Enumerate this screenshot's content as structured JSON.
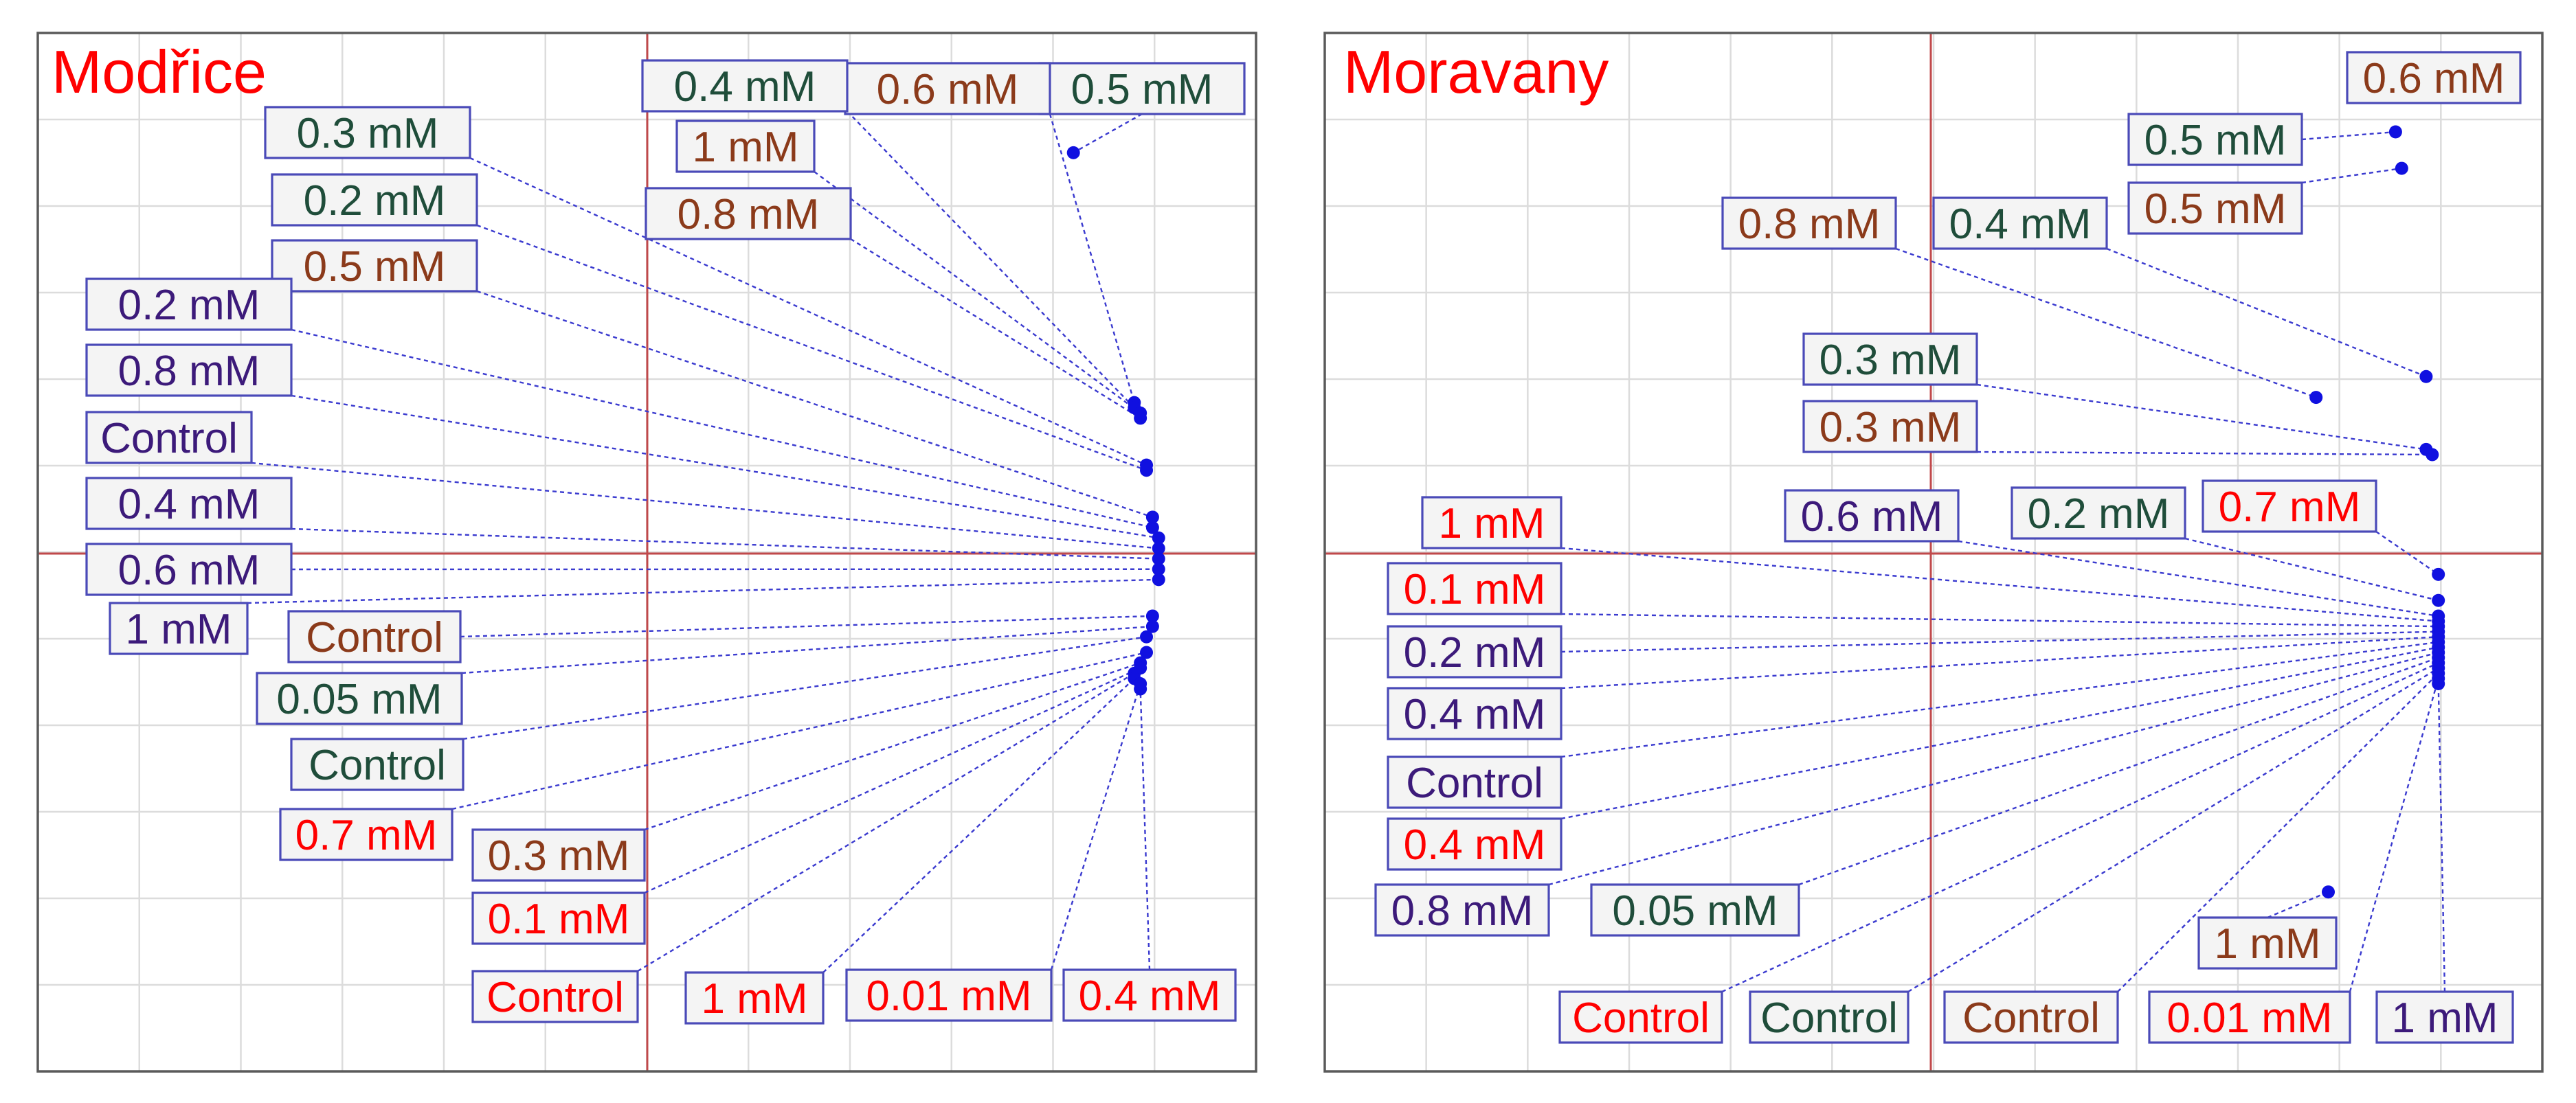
{
  "colors": {
    "red": "#ff0000",
    "brown": "#8b3a1a",
    "green": "#1f4d3a",
    "purple": "#3c1a7a",
    "point": "#1010e0"
  },
  "chart_data": [
    {
      "type": "scatter",
      "title": "Modřice",
      "xlim": [
        -1,
        1
      ],
      "ylim": [
        -1,
        1
      ],
      "gridlines": true,
      "points": [
        {
          "label": "0.5 mM",
          "color": "green",
          "x": 0.7,
          "y": 0.77
        },
        {
          "label": "0.6 mM",
          "color": "brown",
          "x": 0.8,
          "y": 0.29
        },
        {
          "label": "0.4 mM",
          "color": "green",
          "x": 0.8,
          "y": 0.28
        },
        {
          "label": "1 mM",
          "color": "brown",
          "x": 0.81,
          "y": 0.27
        },
        {
          "label": "0.8 mM",
          "color": "brown",
          "x": 0.81,
          "y": 0.26
        },
        {
          "label": "0.3 mM",
          "color": "green",
          "x": 0.82,
          "y": 0.17
        },
        {
          "label": "0.2 mM",
          "color": "green",
          "x": 0.82,
          "y": 0.16
        },
        {
          "label": "0.5 mM",
          "color": "brown",
          "x": 0.83,
          "y": 0.07
        },
        {
          "label": "0.2 mM",
          "color": "purple",
          "x": 0.83,
          "y": 0.05
        },
        {
          "label": "0.8 mM",
          "color": "purple",
          "x": 0.84,
          "y": 0.03
        },
        {
          "label": "Control",
          "color": "purple",
          "x": 0.84,
          "y": 0.01
        },
        {
          "label": "0.4 mM",
          "color": "purple",
          "x": 0.84,
          "y": -0.01
        },
        {
          "label": "0.6 mM",
          "color": "purple",
          "x": 0.84,
          "y": -0.03
        },
        {
          "label": "1 mM",
          "color": "purple",
          "x": 0.84,
          "y": -0.05
        },
        {
          "label": "Control",
          "color": "brown",
          "x": 0.83,
          "y": -0.12
        },
        {
          "label": "0.05 mM",
          "color": "green",
          "x": 0.83,
          "y": -0.14
        },
        {
          "label": "Control",
          "color": "green",
          "x": 0.82,
          "y": -0.16
        },
        {
          "label": "0.7 mM",
          "color": "red",
          "x": 0.82,
          "y": -0.19
        },
        {
          "label": "0.3 mM",
          "color": "brown",
          "x": 0.81,
          "y": -0.21
        },
        {
          "label": "0.1 mM",
          "color": "red",
          "x": 0.81,
          "y": -0.22
        },
        {
          "label": "Control",
          "color": "red",
          "x": 0.8,
          "y": -0.23
        },
        {
          "label": "1 mM",
          "color": "red",
          "x": 0.8,
          "y": -0.24
        },
        {
          "label": "0.01 mM",
          "color": "red",
          "x": 0.81,
          "y": -0.25
        },
        {
          "label": "0.4 mM",
          "color": "red",
          "x": 0.81,
          "y": -0.26
        }
      ]
    },
    {
      "type": "scatter",
      "title": "Moravany",
      "xlim": [
        -1,
        1
      ],
      "ylim": [
        -1,
        1
      ],
      "gridlines": true,
      "points": [
        {
          "label": "0.6 mM",
          "color": "brown",
          "x": 0.72,
          "y": 0.88
        },
        {
          "label": "0.5 mM",
          "color": "green",
          "x": 0.76,
          "y": 0.81
        },
        {
          "label": "0.5 mM",
          "color": "brown",
          "x": 0.77,
          "y": 0.74
        },
        {
          "label": "0.8 mM",
          "color": "brown",
          "x": 0.63,
          "y": 0.3
        },
        {
          "label": "0.4 mM",
          "color": "green",
          "x": 0.81,
          "y": 0.34
        },
        {
          "label": "0.3 mM",
          "color": "green",
          "x": 0.81,
          "y": 0.2
        },
        {
          "label": "0.3 mM",
          "color": "brown",
          "x": 0.82,
          "y": 0.19
        },
        {
          "label": "0.7 mM",
          "color": "red",
          "x": 0.83,
          "y": -0.04
        },
        {
          "label": "0.2 mM",
          "color": "green",
          "x": 0.83,
          "y": -0.09
        },
        {
          "label": "0.6 mM",
          "color": "purple",
          "x": 0.83,
          "y": -0.12
        },
        {
          "label": "1 mM",
          "color": "red",
          "x": 0.83,
          "y": -0.13
        },
        {
          "label": "0.1 mM",
          "color": "red",
          "x": 0.83,
          "y": -0.14
        },
        {
          "label": "0.2 mM",
          "color": "purple",
          "x": 0.83,
          "y": -0.15
        },
        {
          "label": "0.4 mM",
          "color": "purple",
          "x": 0.83,
          "y": -0.16
        },
        {
          "label": "Control",
          "color": "purple",
          "x": 0.83,
          "y": -0.17
        },
        {
          "label": "0.4 mM",
          "color": "red",
          "x": 0.83,
          "y": -0.18
        },
        {
          "label": "0.8 mM",
          "color": "purple",
          "x": 0.83,
          "y": -0.19
        },
        {
          "label": "0.05 mM",
          "color": "green",
          "x": 0.83,
          "y": -0.2
        },
        {
          "label": "Control",
          "color": "red",
          "x": 0.83,
          "y": -0.21
        },
        {
          "label": "Control",
          "color": "green",
          "x": 0.83,
          "y": -0.22
        },
        {
          "label": "Control",
          "color": "brown",
          "x": 0.83,
          "y": -0.23
        },
        {
          "label": "0.01 mM",
          "color": "red",
          "x": 0.83,
          "y": -0.24
        },
        {
          "label": "1 mM",
          "color": "purple",
          "x": 0.83,
          "y": -0.25
        },
        {
          "label": "1 mM",
          "color": "brown",
          "x": 0.65,
          "y": -0.65
        }
      ]
    }
  ]
}
